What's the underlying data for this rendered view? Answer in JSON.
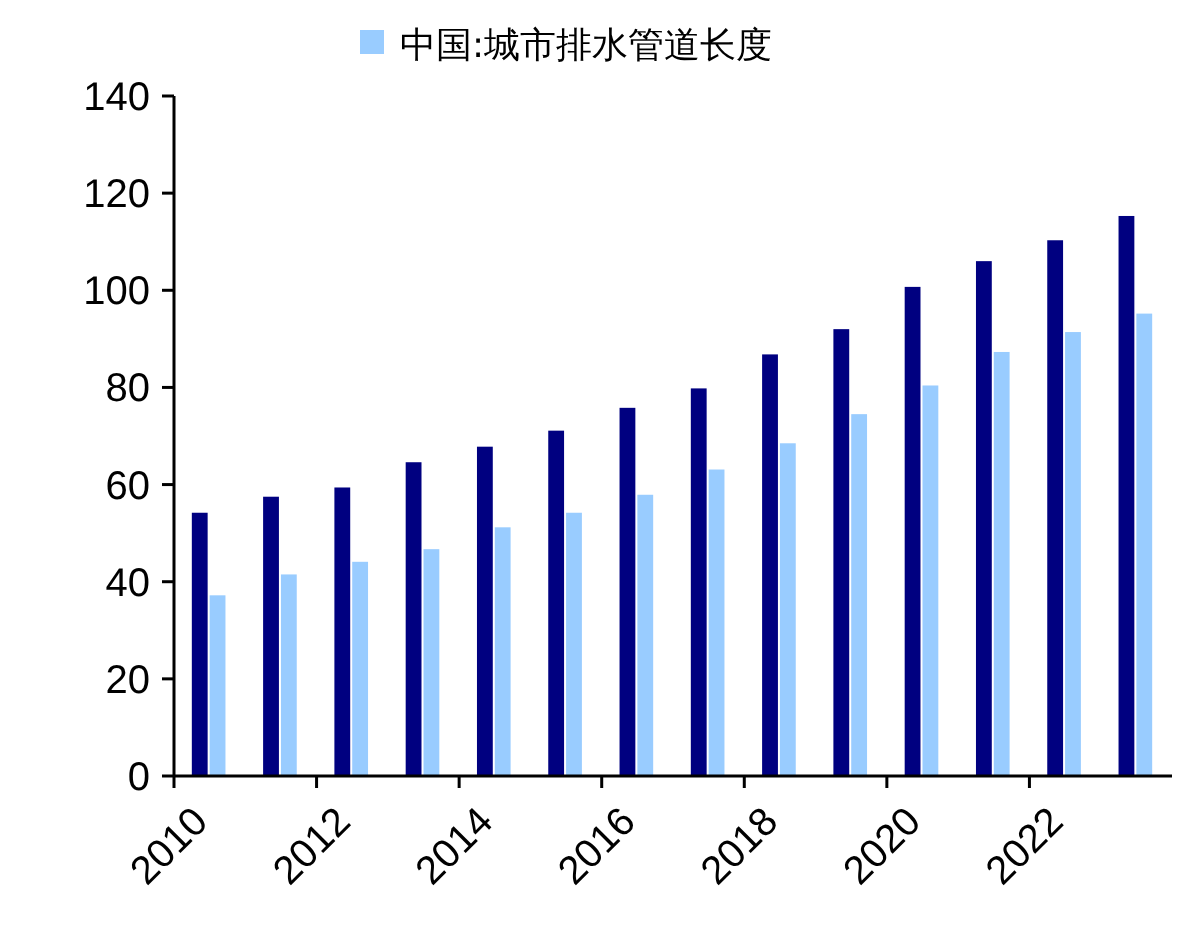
{
  "chart_data": {
    "type": "bar",
    "categories": [
      "2010",
      null,
      "2012",
      null,
      "2014",
      null,
      "2016",
      null,
      "2018",
      null,
      "2020",
      null,
      "2022",
      null
    ],
    "series": [
      {
        "color": "#000080",
        "values": [
          54.2,
          57.5,
          59.4,
          64.6,
          67.8,
          71.1,
          75.8,
          79.8,
          86.8,
          92.0,
          100.7,
          106.0,
          110.3,
          115.3
        ]
      },
      {
        "name": "中国:城市排水管道长度",
        "color": "#99ccff",
        "values": [
          37.2,
          41.5,
          44.1,
          46.7,
          51.2,
          54.2,
          57.9,
          63.1,
          68.5,
          74.5,
          80.4,
          87.3,
          91.4,
          95.2
        ]
      }
    ],
    "ylim": [
      0,
      140
    ],
    "yticks": [
      0,
      20,
      40,
      60,
      80,
      100,
      120,
      140
    ],
    "grid": false,
    "legend": "top"
  }
}
